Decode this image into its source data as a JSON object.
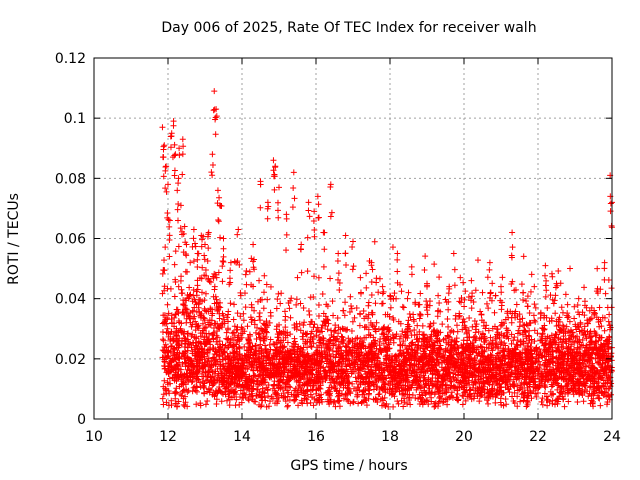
{
  "chart_data": {
    "type": "scatter",
    "title": "Day 006 of 2025, Rate Of TEC Index for receiver walh",
    "xlabel": "GPS time / hours",
    "ylabel": "ROTI / TECUs",
    "xlim": [
      10,
      24
    ],
    "ylim": [
      0,
      0.12
    ],
    "x_ticks": [
      10,
      12,
      14,
      16,
      18,
      20,
      22,
      24
    ],
    "y_ticks": [
      0,
      0.02,
      0.04,
      0.06,
      0.08,
      0.1,
      0.12
    ],
    "x_tick_labels": [
      "10",
      "12",
      "14",
      "16",
      "18",
      "20",
      "22",
      "24"
    ],
    "y_tick_labels": [
      "0",
      "0.02",
      "0.04",
      "0.06",
      "0.08",
      "0.1",
      "0.12"
    ],
    "grid": true,
    "marker": "+",
    "color": "#ff0000",
    "series": [
      {
        "name": "ROTI",
        "note": "dense cloud of observations from ~11.9 h to 24 h; values mostly 0.005-0.03 TECU",
        "points": [
          [
            11.85,
            0.097
          ],
          [
            11.9,
            0.091
          ],
          [
            11.95,
            0.084
          ],
          [
            12.0,
            0.078
          ],
          [
            12.05,
            0.066
          ],
          [
            12.1,
            0.095
          ],
          [
            12.15,
            0.099
          ],
          [
            12.2,
            0.088
          ],
          [
            12.25,
            0.076
          ],
          [
            12.3,
            0.09
          ],
          [
            12.35,
            0.071
          ],
          [
            12.4,
            0.093
          ],
          [
            12.45,
            0.064
          ],
          [
            12.5,
            0.058
          ],
          [
            12.6,
            0.052
          ],
          [
            12.7,
            0.063
          ],
          [
            12.8,
            0.055
          ],
          [
            12.9,
            0.061
          ],
          [
            13.0,
            0.058
          ],
          [
            13.1,
            0.062
          ],
          [
            13.2,
            0.088
          ],
          [
            13.25,
            0.109
          ],
          [
            13.3,
            0.103
          ],
          [
            13.35,
            0.076
          ],
          [
            13.4,
            0.071
          ],
          [
            13.5,
            0.06
          ],
          [
            13.7,
            0.052
          ],
          [
            13.9,
            0.063
          ],
          [
            14.1,
            0.048
          ],
          [
            14.3,
            0.058
          ],
          [
            14.5,
            0.079
          ],
          [
            14.7,
            0.072
          ],
          [
            14.85,
            0.086
          ],
          [
            14.9,
            0.084
          ],
          [
            15.0,
            0.077
          ],
          [
            15.2,
            0.068
          ],
          [
            15.4,
            0.082
          ],
          [
            15.6,
            0.058
          ],
          [
            15.8,
            0.072
          ],
          [
            15.95,
            0.069
          ],
          [
            16.05,
            0.074
          ],
          [
            16.2,
            0.062
          ],
          [
            16.4,
            0.078
          ],
          [
            16.6,
            0.055
          ],
          [
            16.8,
            0.061
          ],
          [
            17.0,
            0.059
          ],
          [
            17.2,
            0.047
          ],
          [
            17.5,
            0.052
          ],
          [
            17.8,
            0.044
          ],
          [
            18.0,
            0.041
          ],
          [
            18.2,
            0.055
          ],
          [
            18.5,
            0.042
          ],
          [
            18.8,
            0.038
          ],
          [
            19.0,
            0.045
          ],
          [
            19.3,
            0.041
          ],
          [
            19.6,
            0.044
          ],
          [
            19.9,
            0.047
          ],
          [
            20.2,
            0.046
          ],
          [
            20.5,
            0.042
          ],
          [
            20.7,
            0.052
          ],
          [
            21.0,
            0.044
          ],
          [
            21.3,
            0.062
          ],
          [
            21.6,
            0.042
          ],
          [
            21.9,
            0.044
          ],
          [
            22.2,
            0.051
          ],
          [
            22.5,
            0.045
          ],
          [
            22.8,
            0.038
          ],
          [
            23.1,
            0.04
          ],
          [
            23.4,
            0.036
          ],
          [
            23.6,
            0.05
          ],
          [
            23.8,
            0.052
          ],
          [
            23.95,
            0.081
          ],
          [
            24.0,
            0.072
          ]
        ]
      }
    ]
  }
}
